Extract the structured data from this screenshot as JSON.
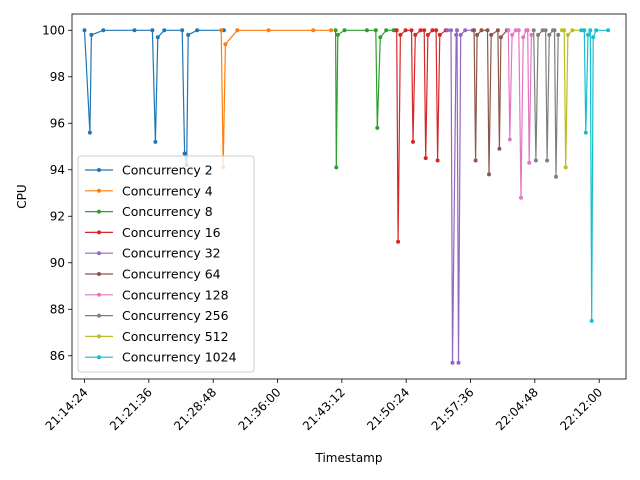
{
  "chart_data": {
    "type": "line",
    "title": "",
    "xlabel": "Timestamp",
    "ylabel": "CPU",
    "xlim": [
      "21:13:00",
      "22:15:00"
    ],
    "ylim": [
      85,
      100.7
    ],
    "x_ticks": [
      "21:14:24",
      "21:21:36",
      "21:28:48",
      "21:36:00",
      "21:43:12",
      "21:50:24",
      "21:57:36",
      "22:04:48",
      "22:12:00"
    ],
    "y_ticks": [
      86,
      88,
      90,
      92,
      94,
      96,
      98,
      100
    ],
    "grid": false,
    "legend_position": "lower-left",
    "series": [
      {
        "name": "Concurrency 2",
        "color": "#1f77b4",
        "x": [
          "21:14:24",
          "21:15:00",
          "21:15:10",
          "21:16:30",
          "21:20:00",
          "21:22:00",
          "21:22:20",
          "21:22:36",
          "21:23:20",
          "21:25:20",
          "21:25:36",
          "21:25:50",
          "21:26:00",
          "21:27:00",
          "21:30:00"
        ],
        "y": [
          100,
          95.6,
          99.8,
          100,
          100,
          100,
          95.2,
          99.7,
          100,
          100,
          94.7,
          94.2,
          99.8,
          100,
          100
        ]
      },
      {
        "name": "Concurrency 4",
        "color": "#ff7f0e",
        "x": [
          "21:29:42",
          "21:29:55",
          "21:30:10",
          "21:31:30",
          "21:35:00",
          "21:40:00",
          "21:42:00"
        ],
        "y": [
          100,
          94.1,
          99.4,
          100,
          100,
          100,
          100
        ]
      },
      {
        "name": "Concurrency 8",
        "color": "#2ca02c",
        "x": [
          "21:42:30",
          "21:42:35",
          "21:42:45",
          "21:43:30",
          "21:46:00",
          "21:47:00",
          "21:47:10",
          "21:47:30",
          "21:48:10",
          "21:49:00",
          "21:49:10"
        ],
        "y": [
          100,
          94.1,
          99.8,
          100,
          100,
          100,
          95.8,
          99.7,
          100,
          100,
          100
        ]
      },
      {
        "name": "Concurrency 16",
        "color": "#d62728",
        "x": [
          "21:49:20",
          "21:49:30",
          "21:49:45",
          "21:50:20",
          "21:51:00",
          "21:51:10",
          "21:51:25",
          "21:52:00",
          "21:52:25",
          "21:52:35",
          "21:52:50",
          "21:53:20",
          "21:53:45",
          "21:53:55",
          "21:54:10",
          "21:54:50"
        ],
        "y": [
          100,
          90.9,
          99.8,
          100,
          100,
          95.2,
          99.8,
          100,
          100,
          94.5,
          99.8,
          100,
          100,
          94.4,
          99.8,
          100
        ]
      },
      {
        "name": "Concurrency 32",
        "color": "#9467bd",
        "x": [
          "21:55:00",
          "21:55:25",
          "21:55:35",
          "21:56:00",
          "21:56:05",
          "21:56:15",
          "21:56:30",
          "21:57:00",
          "21:57:50"
        ],
        "y": [
          100,
          100,
          85.7,
          99.8,
          100,
          85.7,
          99.8,
          100,
          100
        ]
      },
      {
        "name": "Concurrency 64",
        "color": "#8c564b",
        "x": [
          "21:58:00",
          "21:58:10",
          "21:58:20",
          "21:58:50",
          "21:59:30",
          "21:59:40",
          "21:59:55",
          "22:00:40",
          "22:00:50",
          "22:01:00",
          "22:01:40"
        ],
        "y": [
          100,
          94.4,
          99.8,
          100,
          100,
          93.8,
          99.8,
          100,
          94.9,
          99.7,
          100
        ]
      },
      {
        "name": "Concurrency 128",
        "color": "#e377c2",
        "x": [
          "22:01:50",
          "22:02:00",
          "22:02:15",
          "22:02:40",
          "22:03:00",
          "22:03:15",
          "22:03:30",
          "22:03:50",
          "22:04:00",
          "22:04:10",
          "22:04:25"
        ],
        "y": [
          100,
          95.3,
          99.8,
          100,
          100,
          92.8,
          99.7,
          100,
          100,
          94.3,
          99.8
        ]
      },
      {
        "name": "Concurrency 256",
        "color": "#7f7f7f",
        "x": [
          "22:04:40",
          "22:04:55",
          "22:05:10",
          "22:05:40",
          "22:06:00",
          "22:06:10",
          "22:06:25",
          "22:06:50",
          "22:07:00",
          "22:07:10",
          "22:07:25"
        ],
        "y": [
          100,
          94.4,
          99.8,
          100,
          100,
          94.4,
          99.8,
          100,
          100,
          93.7,
          99.8
        ]
      },
      {
        "name": "Concurrency 512",
        "color": "#bcbd22",
        "x": [
          "22:07:50",
          "22:08:05",
          "22:08:15",
          "22:08:30",
          "22:09:00",
          "22:10:00"
        ],
        "y": [
          100,
          100,
          94.1,
          99.8,
          100,
          100
        ]
      },
      {
        "name": "Concurrency 1024",
        "color": "#17becf",
        "x": [
          "22:10:00",
          "22:10:20",
          "22:10:30",
          "22:10:45",
          "22:11:00",
          "22:11:10",
          "22:11:20",
          "22:11:40",
          "22:13:00"
        ],
        "y": [
          100,
          100,
          95.6,
          99.8,
          100,
          87.5,
          99.7,
          100,
          100
        ]
      }
    ]
  }
}
